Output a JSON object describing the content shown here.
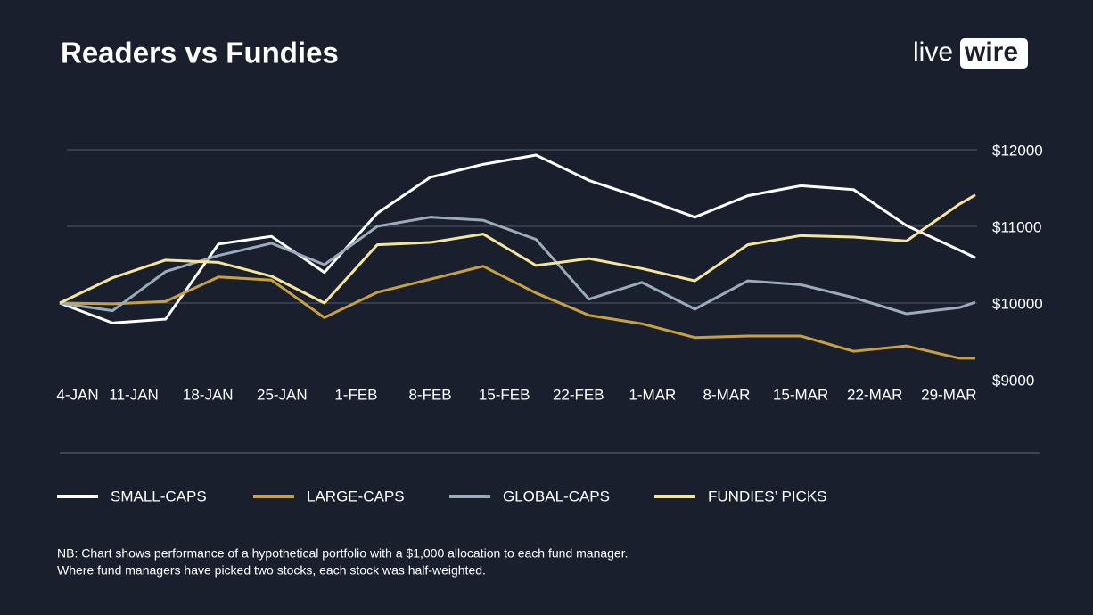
{
  "header": {
    "title": "Readers vs Fundies",
    "logo": [
      "live",
      "wire"
    ]
  },
  "chart_data": {
    "type": "line",
    "x": [
      0,
      5,
      10,
      15,
      20,
      25,
      30,
      35,
      40,
      45,
      50,
      55,
      60,
      65,
      70,
      75,
      80,
      85,
      86.5
    ],
    "xlim": [
      0,
      86.5
    ],
    "xticks": [
      {
        "value": 0,
        "label": "4-JAN"
      },
      {
        "value": 7,
        "label": "11-JAN"
      },
      {
        "value": 14,
        "label": "18-JAN"
      },
      {
        "value": 21,
        "label": "25-JAN"
      },
      {
        "value": 28,
        "label": "1-FEB"
      },
      {
        "value": 35,
        "label": "8-FEB"
      },
      {
        "value": 42,
        "label": "15-FEB"
      },
      {
        "value": 49,
        "label": "22-FEB"
      },
      {
        "value": 56,
        "label": "1-MAR"
      },
      {
        "value": 63,
        "label": "8-MAR"
      },
      {
        "value": 70,
        "label": "15-MAR"
      },
      {
        "value": 77,
        "label": "22-MAR"
      },
      {
        "value": 84,
        "label": "29-MAR"
      }
    ],
    "ylim": [
      9000,
      12000
    ],
    "yticks": [
      {
        "value": 9000,
        "label": "$9000"
      },
      {
        "value": 10000,
        "label": "$10000"
      },
      {
        "value": 11000,
        "label": "$11000"
      },
      {
        "value": 12000,
        "label": "$12000"
      }
    ],
    "grid": true,
    "series": [
      {
        "name": "SMALL-CAPS",
        "color": "#ffffff",
        "values": [
          10000,
          9740,
          9790,
          10770,
          10870,
          10400,
          11170,
          11640,
          11810,
          11930,
          11600,
          11370,
          11120,
          11400,
          11530,
          11480,
          11010,
          10690,
          10590
        ]
      },
      {
        "name": "LARGE-CAPS",
        "color": "#c9a040",
        "values": [
          10000,
          9990,
          10020,
          10340,
          10300,
          9810,
          10140,
          10310,
          10480,
          10130,
          9840,
          9730,
          9550,
          9570,
          9570,
          9370,
          9440,
          9280,
          9280
        ]
      },
      {
        "name": "GLOBAL-CAPS",
        "color": "#9aabbc",
        "values": [
          10000,
          9900,
          10410,
          10620,
          10780,
          10500,
          11000,
          11120,
          11080,
          10830,
          10050,
          10270,
          9920,
          10290,
          10240,
          10070,
          9860,
          9940,
          10010
        ]
      },
      {
        "name": "FUNDIES’ PICKS",
        "color": "#f5e59a",
        "values": [
          10000,
          10330,
          10560,
          10530,
          10350,
          10000,
          10760,
          10790,
          10900,
          10490,
          10580,
          10450,
          10290,
          10760,
          10880,
          10860,
          10810,
          11290,
          11410
        ]
      }
    ],
    "legend": "bottom",
    "notes": [
      "NB: Chart shows performance of a hypothetical portfolio with a $1,000 allocation to each fund manager.",
      "Where fund managers have picked two stocks, each stock was half-weighted."
    ]
  }
}
